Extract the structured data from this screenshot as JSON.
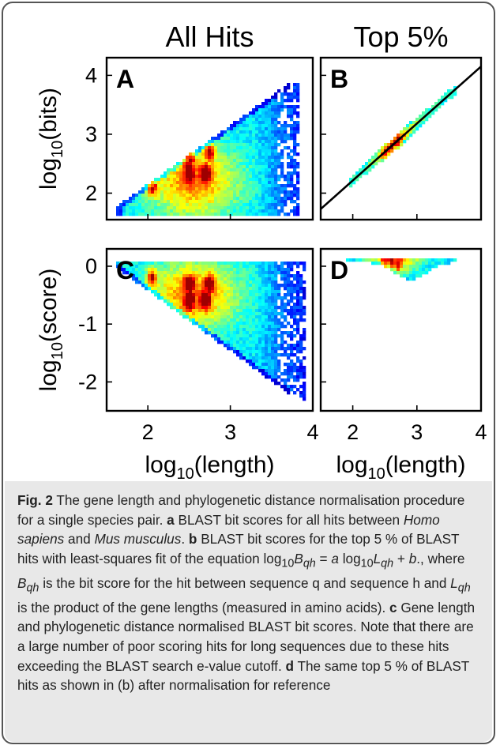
{
  "colors": {
    "frame": "#555555",
    "caption_bg": "#e8e8e8",
    "fit_line": "#000000"
  },
  "chart_data": [
    {
      "panel": "A",
      "type": "heatmap",
      "column_title": "All Hits",
      "panel_label": "A",
      "ylabel": "log10(bits)",
      "xlabel": "",
      "xlim": [
        1.5,
        4.0
      ],
      "ylim": [
        1.55,
        4.3
      ],
      "xticks": [
        2,
        3,
        4
      ],
      "yticks": [
        2,
        3,
        4
      ],
      "ytick_labels": [
        "2",
        "3",
        "4"
      ],
      "xtick_labels": [],
      "region": "triangle bounded below by log10(bits)=1.6 and above by the line from (1.6, 1.75) to (3.9, 4.05)",
      "hotspots": [
        [
          2.05,
          2.1
        ],
        [
          2.5,
          2.6
        ],
        [
          2.5,
          2.35
        ],
        [
          2.7,
          2.35
        ],
        [
          2.75,
          2.7
        ]
      ]
    },
    {
      "panel": "B",
      "type": "heatmap",
      "column_title": "Top 5%",
      "panel_label": "B",
      "ylabel": "",
      "xlabel": "",
      "xlim": [
        1.5,
        4.0
      ],
      "ylim": [
        1.55,
        4.3
      ],
      "xticks": [
        2,
        3,
        4
      ],
      "yticks": [
        2,
        3,
        4
      ],
      "ytick_labels": [],
      "xtick_labels": [],
      "region": "narrow band along the fit line from (1.95, 2.15) to (3.6, 3.75)",
      "fit_line": {
        "x": [
          1.5,
          4.0
        ],
        "y": [
          1.73,
          4.15
        ]
      },
      "hotspots": [
        [
          2.6,
          2.8
        ],
        [
          2.7,
          2.9
        ],
        [
          2.5,
          2.7
        ]
      ]
    },
    {
      "panel": "C",
      "type": "heatmap",
      "panel_label": "C",
      "ylabel": "log10(score)",
      "xlabel": "log10(length)",
      "xlim": [
        1.5,
        4.0
      ],
      "ylim": [
        -2.5,
        0.3
      ],
      "xticks": [
        2,
        3,
        4
      ],
      "yticks": [
        0,
        -1,
        -2
      ],
      "ytick_labels": [
        "0",
        "-1",
        "-2"
      ],
      "xtick_labels": [
        "2",
        "3",
        "4"
      ],
      "region": "triangle bounded above by log10(score)=0.1 and below by the line from (1.6, 0.0) to (3.9, -2.4)",
      "hotspots": [
        [
          2.05,
          -0.2
        ],
        [
          2.5,
          -0.3
        ],
        [
          2.5,
          -0.6
        ],
        [
          2.7,
          -0.6
        ],
        [
          2.75,
          -0.3
        ]
      ]
    },
    {
      "panel": "D",
      "type": "heatmap",
      "panel_label": "D",
      "ylabel": "",
      "xlabel": "log10(length)",
      "xlim": [
        1.5,
        4.0
      ],
      "ylim": [
        -2.5,
        0.3
      ],
      "xticks": [
        2,
        3,
        4
      ],
      "yticks": [
        0,
        -1,
        -2
      ],
      "ytick_labels": [],
      "xtick_labels": [
        "2",
        "3",
        "4"
      ],
      "region": "thin wedge just below log10(score)=0.1 from log10(length)=1.9 to 3.6, reaching down to about -0.3",
      "hotspots": [
        [
          2.6,
          0.05
        ],
        [
          2.7,
          0.0
        ],
        [
          2.5,
          0.05
        ]
      ]
    }
  ],
  "caption": {
    "fig_label": "Fig. 2",
    "intro": "The gene length and phylogenetic distance normalisation procedure for a single species pair.",
    "a_label": "a",
    "a_text1": "BLAST bit scores for all hits between",
    "a_species1": "Homo sapiens",
    "a_and": "and",
    "a_species2": "Mus musculus",
    "a_end": ".",
    "b_label": "b",
    "b_text1": "BLAST bit scores for the top 5 % of BLAST hits with least-squares fit of the equation log",
    "b_sub10a": "10",
    "b_B": "B",
    "b_qh1": "qh",
    "b_eq": "=",
    "b_a": "a",
    "b_log2": "log",
    "b_sub10b": "10",
    "b_L": "L",
    "b_qh2": "qh",
    "b_plus": "+",
    "b_b": "b",
    "b_text2": "., where",
    "b_B2": "B",
    "b_qh3": "qh",
    "b_text3": "is the bit score for the hit between sequence q and sequence h and",
    "b_L2": "L",
    "b_qh4": "qh",
    "b_text4": "is the product of the gene lengths (measured in amino acids).",
    "c_label": "c",
    "c_text": "Gene length and phylogenetic distance normalised BLAST bit scores. Note that there are a large number of poor scoring hits for long sequences due to these hits exceeding the BLAST search e-value cutoff.",
    "d_label": "d",
    "d_text": "The same top 5 % of BLAST hits as shown in (b) after normalisation for reference"
  }
}
